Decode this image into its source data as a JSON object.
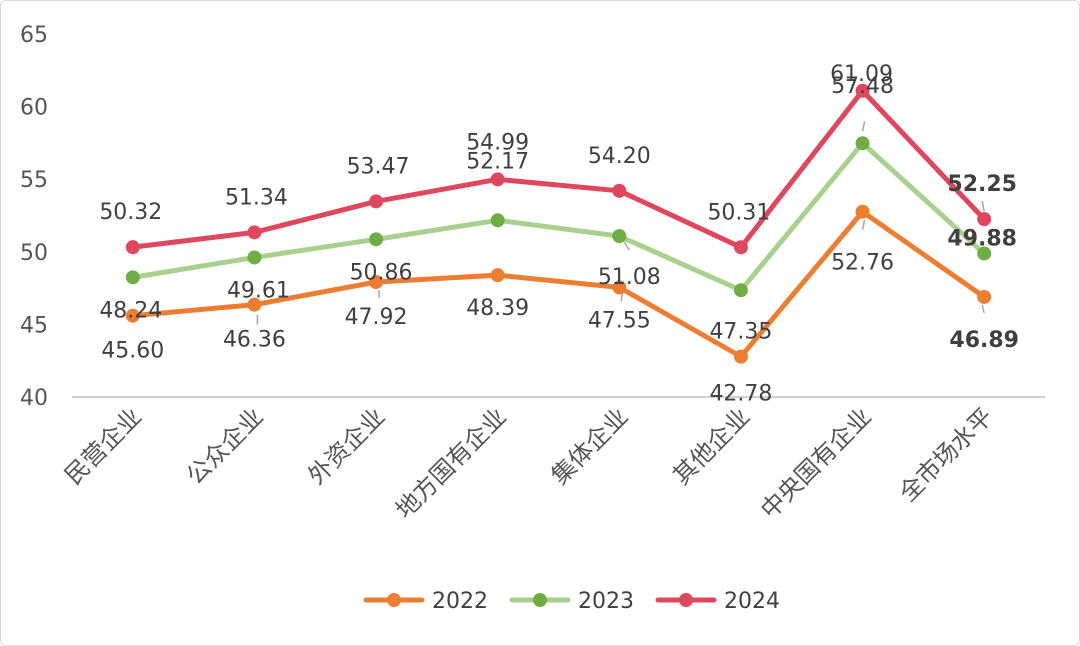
{
  "chart_data": {
    "type": "line",
    "title": "",
    "xlabel": "",
    "ylabel": "",
    "ylim": [
      40,
      65
    ],
    "yticks": [
      40,
      45,
      50,
      55,
      60,
      65
    ],
    "grid": false,
    "legend": "bottom",
    "categories": [
      "民营企业",
      "公众企业",
      "外资企业",
      "地方国有企业",
      "集体企业",
      "其他企业",
      "中央国有企业",
      "全市场水平"
    ],
    "series": [
      {
        "name": "2022",
        "color": "#ED7D31",
        "values": [
          45.6,
          46.36,
          47.92,
          48.39,
          47.55,
          42.78,
          52.76,
          46.89
        ],
        "labels": [
          "45.60",
          "46.36",
          "47.92",
          "48.39",
          "47.55",
          "42.78",
          "52.76",
          "46.89"
        ]
      },
      {
        "name": "2023",
        "color": "#A9D18E",
        "marker_color": "#70AD47",
        "values": [
          48.24,
          49.61,
          50.86,
          52.17,
          51.08,
          47.35,
          57.48,
          49.88
        ],
        "labels": [
          "48.24",
          "49.61",
          "50.86",
          "52.17",
          "51.08",
          "47.35",
          "57.48",
          "49.88"
        ]
      },
      {
        "name": "2024",
        "color": "#E0475E",
        "values": [
          50.32,
          51.34,
          53.47,
          54.99,
          54.2,
          50.31,
          61.09,
          52.25
        ],
        "labels": [
          "50.32",
          "51.34",
          "53.47",
          "54.99",
          "54.20",
          "50.31",
          "61.09",
          "52.25"
        ]
      }
    ]
  }
}
